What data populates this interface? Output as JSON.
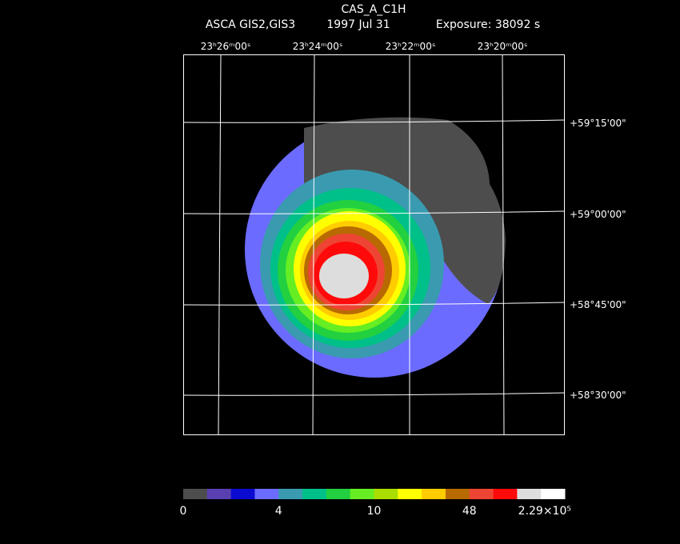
{
  "header": {
    "title": "CAS_A_C1H",
    "instrument": "ASCA GIS2,GIS3",
    "date": "1997 Jul 31",
    "exposure": "Exposure: 38092 s"
  },
  "ra_labels": [
    "23ʰ26ᵐ00ˢ",
    "23ʰ24ᵐ00ˢ",
    "23ʰ22ᵐ00ˢ",
    "23ʰ20ᵐ00ˢ"
  ],
  "dec_labels": [
    "+59°15'00\"",
    "+59°00'00\"",
    "+58°45'00\"",
    "+58°30'00\""
  ],
  "colorbar": {
    "colors": [
      "#4d4d4d",
      "#5a3fb0",
      "#0a0ad0",
      "#6b6bff",
      "#3a9ab0",
      "#00c08a",
      "#22d040",
      "#66ee22",
      "#aadd00",
      "#ffff00",
      "#ffcc00",
      "#b86a00",
      "#ee4433",
      "#ff0a0a",
      "#dddddd",
      "#ffffff"
    ],
    "labels": [
      "0",
      "4",
      "10",
      "48",
      "2.29×10⁵"
    ]
  }
}
